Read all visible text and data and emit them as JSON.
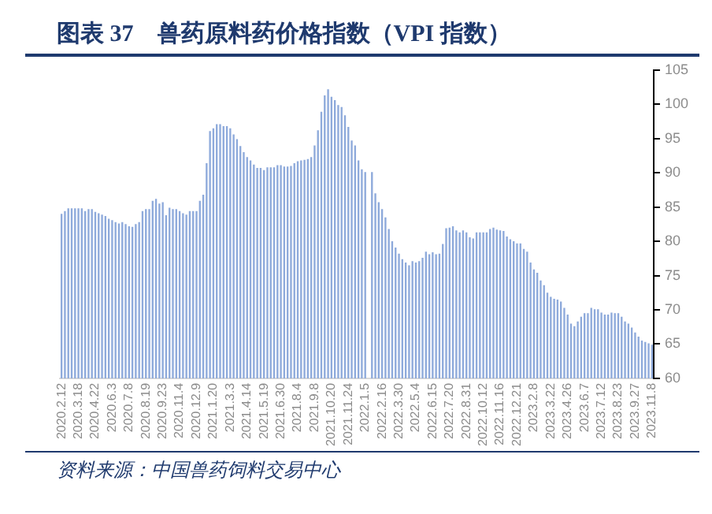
{
  "chart_data": {
    "type": "bar",
    "title": "图表 37　兽药原料药价格指数（VPI 指数）",
    "categories": [
      "2020.2.12",
      null,
      null,
      null,
      null,
      "2020.3.18",
      null,
      null,
      null,
      null,
      "2020.4.22",
      null,
      null,
      null,
      null,
      "2020.6.3",
      null,
      null,
      null,
      null,
      "2020.7.8",
      null,
      null,
      null,
      null,
      "2020.8.19",
      null,
      null,
      null,
      null,
      "2020.9.23",
      null,
      null,
      null,
      null,
      "2020.11.4",
      null,
      null,
      null,
      null,
      "2020.12.9",
      null,
      null,
      null,
      null,
      "2021.1.20",
      null,
      null,
      null,
      null,
      "2021.3.3",
      null,
      null,
      null,
      null,
      "2021.4.14",
      null,
      null,
      null,
      null,
      "2021.5.19",
      null,
      null,
      null,
      null,
      "2021.6.30",
      null,
      null,
      null,
      null,
      "2021.8.4",
      null,
      null,
      null,
      null,
      "2021.9.8",
      null,
      null,
      null,
      null,
      "2021.10.20",
      null,
      null,
      null,
      null,
      "2021.11.24",
      null,
      null,
      null,
      null,
      "2022.1.5",
      null,
      null,
      null,
      null,
      "2022.2.16",
      null,
      null,
      null,
      null,
      "2022.3.30",
      null,
      null,
      null,
      null,
      "2022.5.4",
      null,
      null,
      null,
      null,
      "2022.6.15",
      null,
      null,
      null,
      null,
      "2022.7.20",
      null,
      null,
      null,
      null,
      "2022.8.31",
      null,
      null,
      null,
      null,
      "2022.10.12",
      null,
      null,
      null,
      null,
      "2022.11.16",
      null,
      null,
      null,
      null,
      "2022.12.21",
      null,
      null,
      null,
      null,
      "2023.2.8",
      null,
      null,
      null,
      null,
      "2023.3.22",
      null,
      null,
      null,
      null,
      "2023.4.26",
      null,
      null,
      null,
      null,
      "2023.6.7",
      null,
      null,
      null,
      null,
      "2023.7.12",
      null,
      null,
      null,
      null,
      "2023.8.23",
      null,
      null,
      null,
      null,
      "2023.9.27",
      null,
      null,
      null,
      null,
      "2023.11.8"
    ],
    "values": [
      84.0,
      84.4,
      84.8,
      84.8,
      84.8,
      84.8,
      84.8,
      84.4,
      84.7,
      84.7,
      84.3,
      84.1,
      83.9,
      83.7,
      83.3,
      83.1,
      82.8,
      82.6,
      82.8,
      82.5,
      82.2,
      82.1,
      82.5,
      82.8,
      84.4,
      84.7,
      84.7,
      85.9,
      86.2,
      85.5,
      85.7,
      83.8,
      84.9,
      84.7,
      84.7,
      84.4,
      84.1,
      83.9,
      84.4,
      84.4,
      84.4,
      85.9,
      86.8,
      91.4,
      96.1,
      96.5,
      97.1,
      97.1,
      96.8,
      96.8,
      96.5,
      95.6,
      94.9,
      93.9,
      93.0,
      92.3,
      91.8,
      91.2,
      90.7,
      90.7,
      90.4,
      90.8,
      90.8,
      90.8,
      91.1,
      91.1,
      90.9,
      90.9,
      91.0,
      91.4,
      91.7,
      91.8,
      91.9,
      92.0,
      92.3,
      94.0,
      96.2,
      98.9,
      101.3,
      102.2,
      101.1,
      100.6,
      99.9,
      99.6,
      98.4,
      96.7,
      94.7,
      94.0,
      91.8,
      90.5,
      90.1,
      null,
      90.1,
      87.0,
      85.7,
      84.7,
      83.5,
      81.8,
      80.0,
      79.1,
      78.2,
      77.4,
      76.9,
      76.5,
      77.1,
      76.9,
      77.1,
      77.6,
      78.5,
      78.1,
      78.4,
      78.1,
      78.2,
      79.6,
      81.9,
      82.0,
      82.2,
      81.6,
      81.3,
      81.6,
      81.3,
      80.6,
      80.4,
      81.3,
      81.3,
      81.3,
      81.3,
      81.8,
      82.0,
      81.7,
      81.6,
      81.5,
      80.7,
      80.3,
      80.0,
      79.7,
      79.7,
      78.9,
      78.5,
      76.9,
      75.9,
      75.4,
      74.3,
      73.6,
      72.5,
      71.9,
      71.6,
      71.5,
      71.2,
      70.3,
      69.3,
      68.0,
      67.6,
      68.3,
      69.0,
      69.5,
      69.5,
      70.3,
      70.1,
      70.1,
      69.6,
      69.3,
      69.3,
      69.6,
      69.5,
      69.5,
      69.0,
      68.3,
      68.0,
      67.4,
      66.7,
      66.1,
      65.5,
      65.3,
      65.1,
      64.9
    ],
    "color": "#8eaadb",
    "ylim": [
      60,
      105
    ],
    "yticks": [
      60,
      65,
      70,
      75,
      80,
      85,
      90,
      95,
      100,
      105
    ],
    "grid": false,
    "legend": false,
    "annotations": [
      "资料来源：中国兽药饲料交易中心"
    ]
  }
}
